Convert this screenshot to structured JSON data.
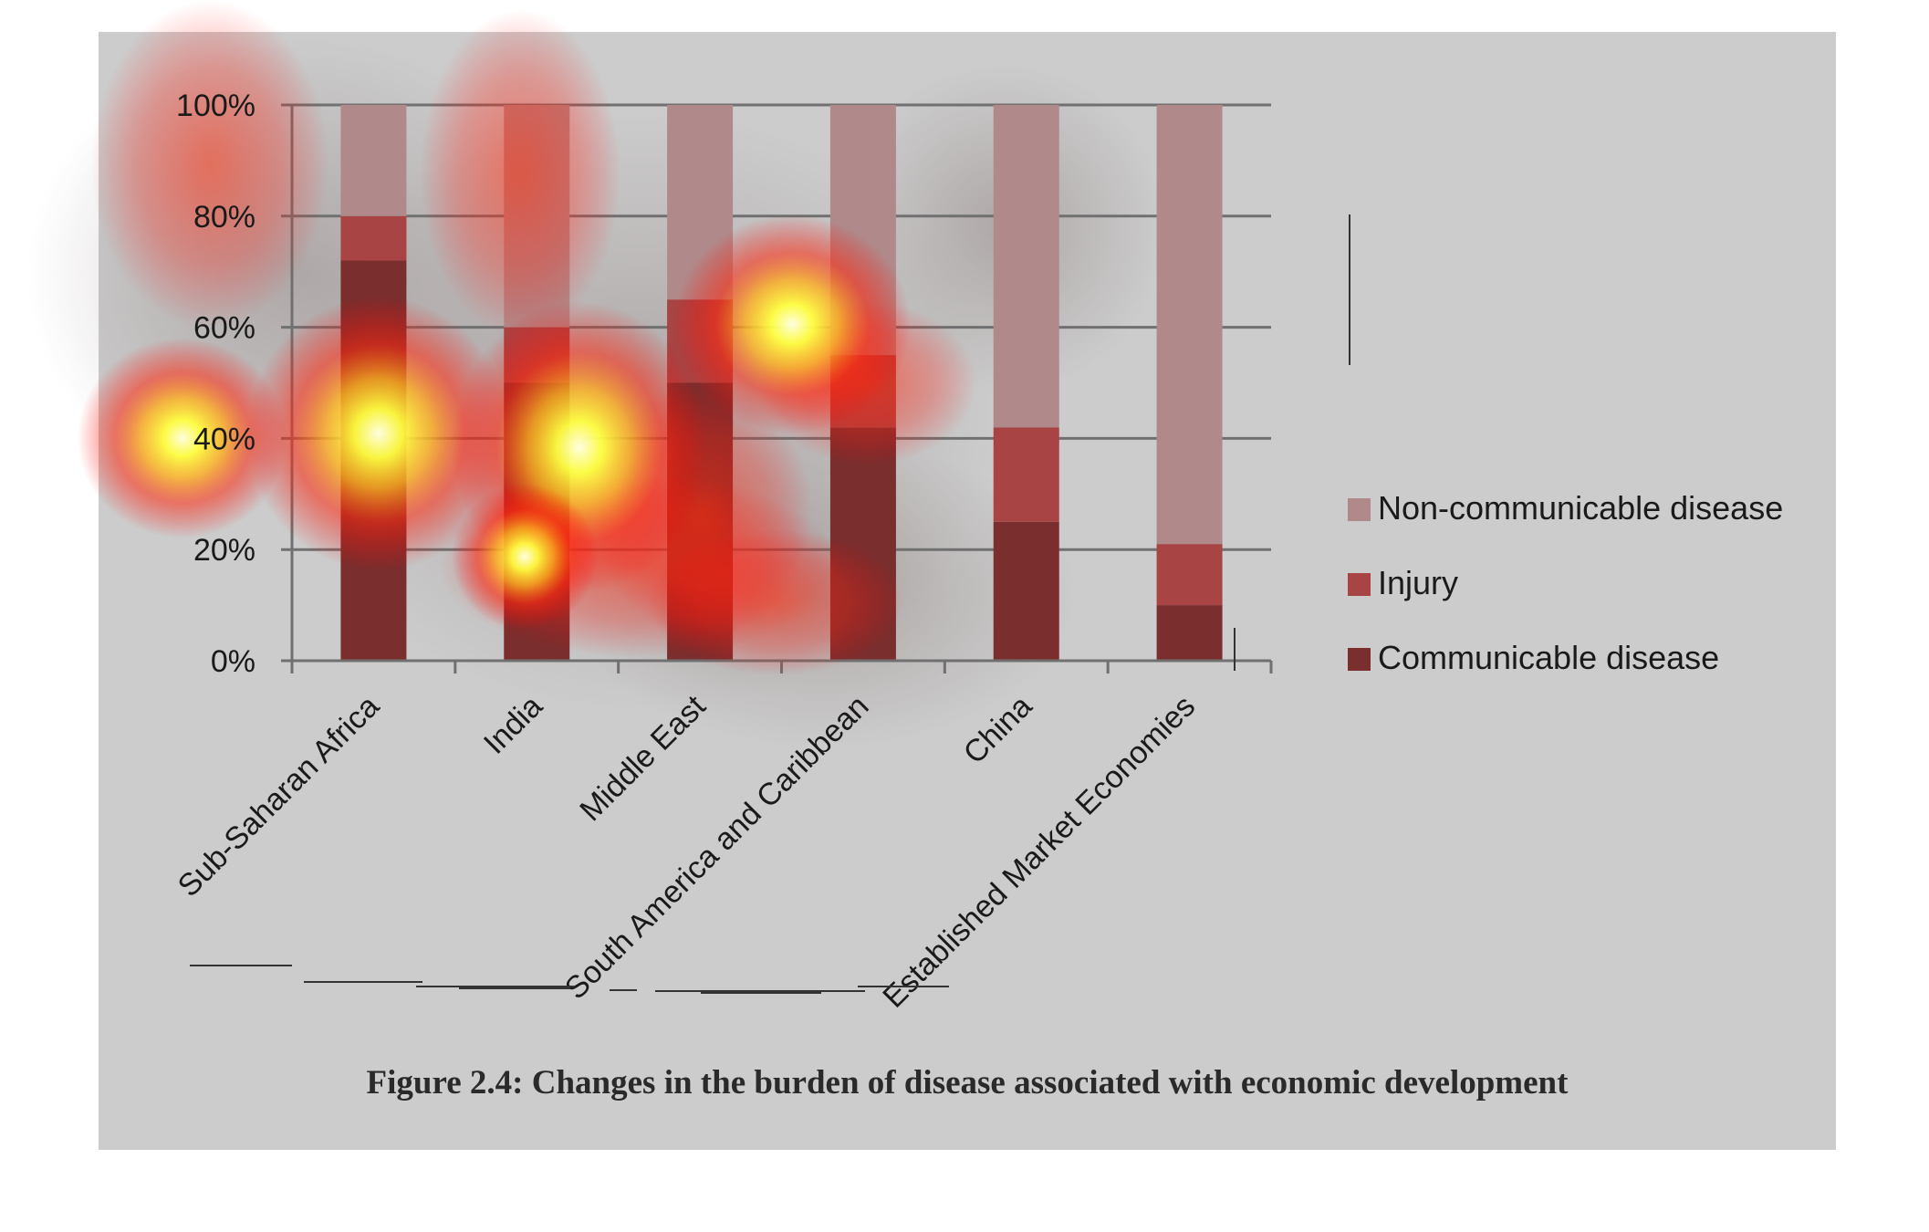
{
  "chart_data": {
    "type": "bar",
    "stacked": true,
    "percent_axis": true,
    "categories": [
      "Sub-Saharan Africa",
      "India",
      "Middle East",
      "South America and Caribbean",
      "China",
      "Established Market Economies"
    ],
    "series": [
      {
        "name": "Communicable disease",
        "color": "#7b2e2e",
        "values": [
          72,
          50,
          50,
          42,
          25,
          10
        ]
      },
      {
        "name": "Injury",
        "color": "#a84444",
        "values": [
          8,
          10,
          15,
          13,
          17,
          11
        ]
      },
      {
        "name": "Non-communicable disease",
        "color": "#b08a8a",
        "values": [
          20,
          40,
          35,
          45,
          58,
          79
        ]
      }
    ],
    "legend_order": [
      "Non-communicable disease",
      "Injury",
      "Communicable disease"
    ],
    "legend_position": "right",
    "ylim": [
      0,
      100
    ],
    "yticks": [
      "0%",
      "20%",
      "40%",
      "60%",
      "80%",
      "100%"
    ],
    "grid": true,
    "xlabel": "",
    "ylabel": "",
    "caption": "Figure 2.4: Changes in the burden of disease associated with economic development"
  },
  "overlay": {
    "type": "attention heatmap",
    "background_color": "#cccccc"
  }
}
